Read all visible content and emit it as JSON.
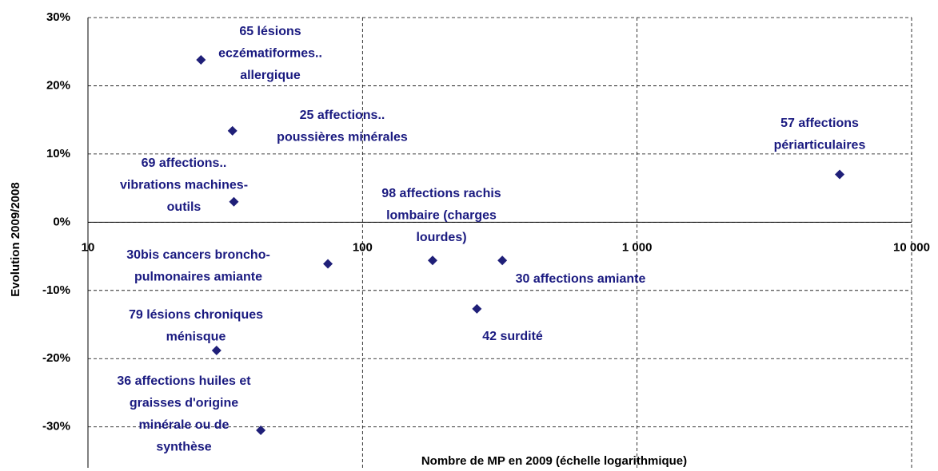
{
  "chart_data": {
    "type": "scatter",
    "x_label": "Nombre de MP en 2009 (échelle logarithmique)",
    "y_label": "Evolution 2009/2008",
    "x_log": true,
    "grid": true,
    "xlim": [
      10,
      10000
    ],
    "ylim": [
      -36,
      30
    ],
    "xticks": [
      10,
      100,
      {
        "value": 1000,
        "label": "1 000"
      },
      {
        "value": 10000,
        "label": "10 000"
      }
    ],
    "yticks": [
      {
        "value": 30,
        "label": "30%"
      },
      {
        "value": 20,
        "label": "20%"
      },
      {
        "value": 10,
        "label": "10%"
      },
      {
        "value": 0,
        "label": "0%"
      },
      {
        "value": -10,
        "label": "-10%"
      },
      {
        "value": -20,
        "label": "-20%"
      },
      {
        "value": -30,
        "label": "-30%"
      }
    ],
    "series": [
      {
        "color": "#1f1f78",
        "x": [
          25.8,
          33.6,
          34,
          5470,
          74.8,
          180,
          323,
          261,
          29.4,
          42.6
        ],
        "values": [
          23.8,
          13.4,
          3.0,
          7.0,
          -6.1,
          -5.6,
          -5.6,
          -12.7,
          -18.8,
          -30.5
        ],
        "labels": [
          [
            "65 lésions",
            "eczématiformes..",
            "allergique"
          ],
          [
            "25 affections..",
            "poussières minérales"
          ],
          [
            "69 affections..",
            "vibrations machines-",
            "outils"
          ],
          [
            "57 affections",
            "périarticulaires"
          ],
          [
            "30bis cancers broncho-",
            "pulmonaires amiante"
          ],
          [
            "98 affections rachis",
            "lombaire (charges",
            "lourdes)"
          ],
          [
            "30 affections amiante"
          ],
          [
            "42 surdité"
          ],
          [
            "79 lésions chroniques",
            "ménisque"
          ],
          [
            "36 affections huiles et",
            "graisses d'origine",
            "minérale ou de",
            "synthèse"
          ]
        ]
      }
    ]
  }
}
